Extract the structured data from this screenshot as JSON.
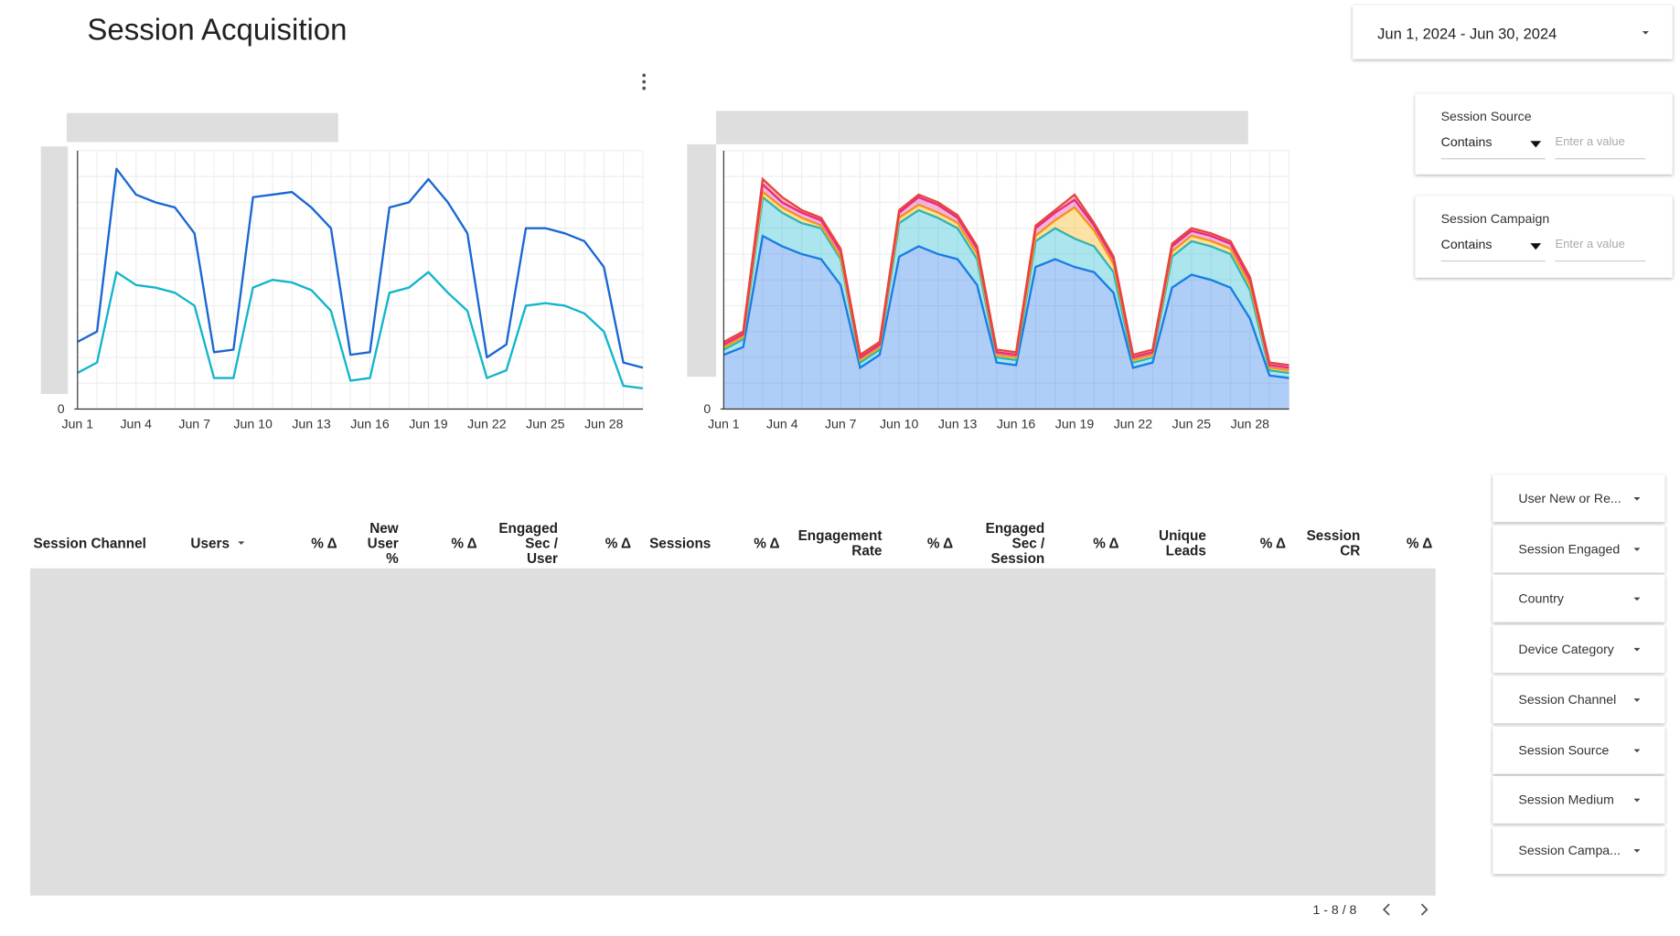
{
  "header": {
    "title": "Session Acquisition",
    "date_range": "Jun 1, 2024 - Jun 30, 2024"
  },
  "filters": [
    {
      "label": "Session Source",
      "operator": "Contains",
      "placeholder": "Enter a value"
    },
    {
      "label": "Session Campaign",
      "operator": "Contains",
      "placeholder": "Enter a value"
    }
  ],
  "chart_data": [
    {
      "type": "line",
      "categories": [
        "Jun 1",
        null,
        null,
        "Jun 4",
        null,
        null,
        "Jun 7",
        null,
        null,
        "Jun 10",
        null,
        null,
        "Jun 13",
        null,
        null,
        "Jun 16",
        null,
        null,
        "Jun 19",
        null,
        null,
        "Jun 22",
        null,
        null,
        "Jun 25",
        null,
        null,
        "Jun 28",
        null,
        null
      ],
      "ylim": [
        0,
        100
      ],
      "yticks": [
        0
      ],
      "grid": true,
      "series": [
        {
          "color": "#1967d2",
          "values": [
            26,
            30,
            93,
            83,
            80,
            78,
            68,
            22,
            23,
            82,
            83,
            84,
            78,
            70,
            21,
            22,
            78,
            80,
            89,
            80,
            68,
            20,
            25,
            70,
            70,
            68,
            65,
            55,
            18,
            16
          ]
        },
        {
          "color": "#12b5cb",
          "values": [
            14,
            18,
            53,
            48,
            47,
            45,
            40,
            12,
            12,
            47,
            50,
            49,
            46,
            38,
            11,
            12,
            45,
            47,
            53,
            45,
            38,
            12,
            15,
            40,
            41,
            40,
            37,
            30,
            9,
            8
          ]
        }
      ]
    },
    {
      "type": "stacked-area",
      "categories": [
        "Jun 1",
        null,
        null,
        "Jun 4",
        null,
        null,
        "Jun 7",
        null,
        null,
        "Jun 10",
        null,
        null,
        "Jun 13",
        null,
        null,
        "Jun 16",
        null,
        null,
        "Jun 19",
        null,
        null,
        "Jun 22",
        null,
        null,
        "Jun 25",
        null,
        null,
        "Jun 28",
        null,
        null
      ],
      "ylim": [
        0,
        100
      ],
      "yticks": [
        0
      ],
      "grid": true,
      "series": [
        {
          "color": "#1a73e8",
          "values": [
            21,
            24,
            67,
            63,
            60,
            58,
            48,
            16,
            21,
            59,
            63,
            60,
            58,
            48,
            18,
            17,
            55,
            58,
            55,
            53,
            45,
            16,
            18,
            47,
            52,
            50,
            47,
            35,
            13,
            12
          ]
        },
        {
          "color": "#12b5cb",
          "values": [
            2,
            3,
            15,
            13,
            12,
            12,
            10,
            2,
            2,
            13,
            14,
            14,
            12,
            10,
            2,
            2,
            10,
            12,
            11,
            10,
            8,
            2,
            2,
            12,
            13,
            13,
            13,
            11,
            2,
            2
          ]
        },
        {
          "color": "#f9ab00",
          "values": [
            1,
            1,
            2,
            2,
            2,
            1,
            1,
            1,
            1,
            2,
            2,
            2,
            2,
            2,
            1,
            1,
            2,
            3,
            12,
            6,
            3,
            1,
            1,
            2,
            2,
            2,
            2,
            2,
            1,
            1
          ]
        },
        {
          "color": "#e52592",
          "values": [
            1,
            1,
            3,
            2,
            2,
            2,
            2,
            1,
            1,
            2,
            3,
            3,
            2,
            2,
            1,
            1,
            3,
            3,
            3,
            2,
            2,
            1,
            1,
            2,
            2,
            2,
            2,
            2,
            1,
            1
          ]
        },
        {
          "color": "#e8453c",
          "values": [
            1,
            1,
            2,
            2,
            1,
            1,
            1,
            1,
            1,
            1,
            1,
            1,
            1,
            1,
            1,
            1,
            1,
            1,
            2,
            1,
            1,
            1,
            1,
            1,
            1,
            1,
            1,
            1,
            1,
            1
          ]
        }
      ]
    }
  ],
  "table": {
    "columns": [
      "Session Channel",
      "Users",
      "% Δ",
      "New User %",
      "% Δ",
      "Engaged Sec / User",
      "% Δ",
      "Sessions",
      "% Δ",
      "Engagement Rate",
      "% Δ",
      "Engaged Sec / Session",
      "% Δ",
      "Unique Leads",
      "% Δ",
      "Session CR",
      "% Δ"
    ],
    "pagination": "1 - 8 / 8"
  },
  "dropdowns": [
    "User New or Re...",
    "Session Engaged",
    "Country",
    "Device Category",
    "Session Channel",
    "Session Source",
    "Session Medium",
    "Session Campa..."
  ]
}
